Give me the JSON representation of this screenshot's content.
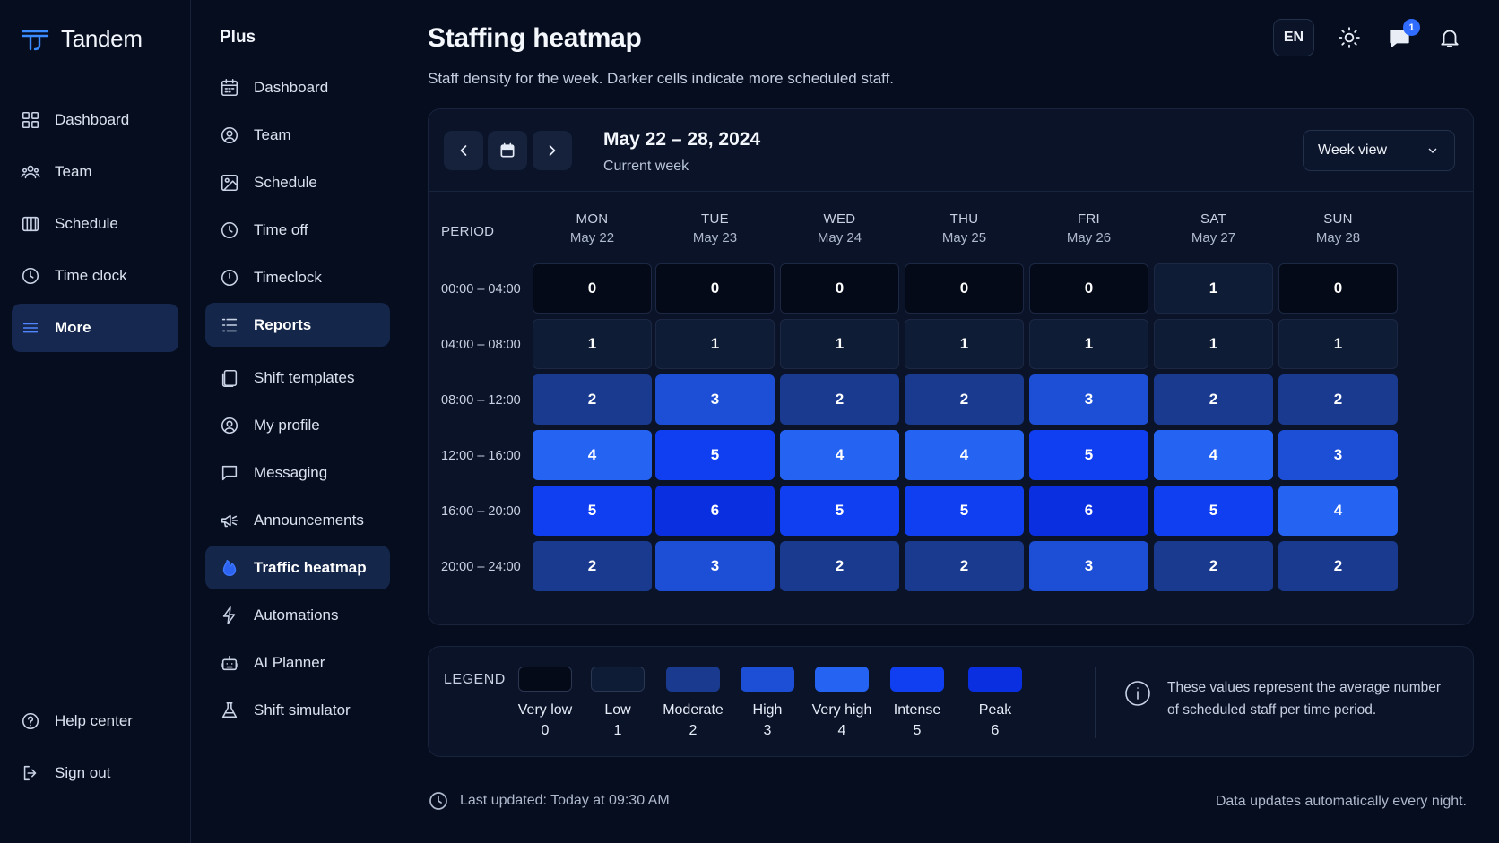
{
  "app": {
    "name": "Tandem"
  },
  "nav": {
    "items": [
      {
        "label": "Dashboard",
        "icon": "dashboard-icon"
      },
      {
        "label": "Team",
        "icon": "team-icon"
      },
      {
        "label": "Schedule",
        "icon": "schedule-icon"
      },
      {
        "label": "Time clock",
        "icon": "clock-icon"
      },
      {
        "label": "More",
        "icon": "menu-icon",
        "active": true
      }
    ],
    "bottom": [
      {
        "label": "Help center",
        "icon": "help-icon"
      },
      {
        "label": "Sign out",
        "icon": "sign-out-icon"
      }
    ]
  },
  "sub": {
    "title": "Plus",
    "items": [
      {
        "label": "Dashboard",
        "icon": "calendar-grid-icon"
      },
      {
        "label": "Team",
        "icon": "team-circle-icon"
      },
      {
        "label": "Schedule",
        "icon": "schedule-image-icon"
      },
      {
        "label": "Time off",
        "icon": "time-off-icon"
      },
      {
        "label": "Timeclock",
        "icon": "timeclock-icon"
      },
      {
        "label": "Reports",
        "icon": "reports-icon",
        "active": true
      },
      {
        "label": "Shift templates",
        "icon": "templates-icon"
      },
      {
        "label": "My profile",
        "icon": "profile-icon"
      },
      {
        "label": "Messaging",
        "icon": "message-icon"
      },
      {
        "label": "Announcements",
        "icon": "megaphone-icon"
      },
      {
        "label": "Traffic heatmap",
        "icon": "flame-icon",
        "active": true
      },
      {
        "label": "Automations",
        "icon": "lightning-icon"
      },
      {
        "label": "AI Planner",
        "icon": "robot-icon"
      },
      {
        "label": "Shift simulator",
        "icon": "flask-icon"
      }
    ]
  },
  "header": {
    "title": "Staffing heatmap",
    "subtitle": "Staff density for the week. Darker cells indicate more scheduled staff.",
    "lang": "EN",
    "message_badge": "1"
  },
  "toolbar": {
    "range_title": "May 22 – 28, 2024",
    "range_sub": "Current week",
    "view_select": "Week view"
  },
  "heatmap": {
    "period_header": "PERIOD",
    "days": [
      {
        "day": "MON",
        "date": "May 22"
      },
      {
        "day": "TUE",
        "date": "May 23"
      },
      {
        "day": "WED",
        "date": "May 24"
      },
      {
        "day": "THU",
        "date": "May 25"
      },
      {
        "day": "FRI",
        "date": "May 26"
      },
      {
        "day": "SAT",
        "date": "May 27"
      },
      {
        "day": "SUN",
        "date": "May 28"
      }
    ],
    "rows": [
      {
        "period": "00:00 – 04:00",
        "values": [
          0,
          0,
          0,
          0,
          0,
          1,
          0
        ]
      },
      {
        "period": "04:00 – 08:00",
        "values": [
          1,
          1,
          1,
          1,
          1,
          1,
          1
        ]
      },
      {
        "period": "08:00 – 12:00",
        "values": [
          2,
          3,
          2,
          2,
          3,
          2,
          2
        ]
      },
      {
        "period": "12:00 – 16:00",
        "values": [
          4,
          5,
          4,
          4,
          5,
          4,
          3
        ]
      },
      {
        "period": "16:00 – 20:00",
        "values": [
          5,
          6,
          5,
          5,
          6,
          5,
          4
        ]
      },
      {
        "period": "20:00 – 24:00",
        "values": [
          2,
          3,
          2,
          2,
          3,
          2,
          2
        ]
      }
    ]
  },
  "legend": {
    "title": "LEGEND",
    "items": [
      {
        "name": "Very low",
        "value": "0",
        "color": "#040a18"
      },
      {
        "name": "Low",
        "value": "1",
        "color": "#0f1c36"
      },
      {
        "name": "Moderate",
        "value": "2",
        "color": "#1a3a8f"
      },
      {
        "name": "High",
        "value": "3",
        "color": "#1d4fd6"
      },
      {
        "name": "Very high",
        "value": "4",
        "color": "#2563f3"
      },
      {
        "name": "Intense",
        "value": "5",
        "color": "#0f3ff0"
      },
      {
        "name": "Peak",
        "value": "6",
        "color": "#0a2fe0"
      }
    ],
    "info": "These values represent the average number of scheduled staff per time period."
  },
  "footer": {
    "last_updated": "Last updated: Today at 09:30 AM",
    "note": "Data updates automatically every night."
  }
}
